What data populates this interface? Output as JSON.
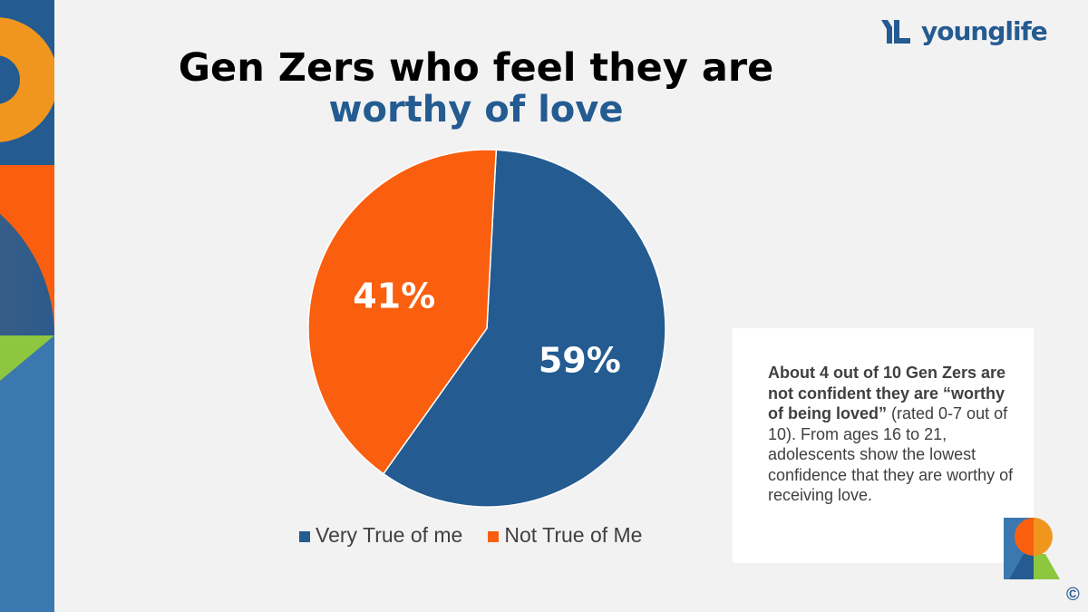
{
  "title": {
    "line1": "Gen Zers who feel they are",
    "line2": "worthy of love"
  },
  "logo": {
    "text": "younglife"
  },
  "chart_data": {
    "type": "pie",
    "title": "Gen Zers who feel they are worthy of love",
    "categories": [
      "Very True of me",
      "Not True of Me"
    ],
    "values": [
      59,
      41
    ],
    "labels": [
      "59%",
      "41%"
    ],
    "colors": [
      "#245b91",
      "#f95f0e"
    ],
    "legend_position": "bottom"
  },
  "note": {
    "bold": "About 4 out of 10 Gen Zers are not confident they are “worthy of being loved”",
    "text": " (rated 0-7 out of 10). From ages 16 to 21, adolescents show the lowest confidence that they are worthy of receiving love."
  },
  "copyright": "©"
}
